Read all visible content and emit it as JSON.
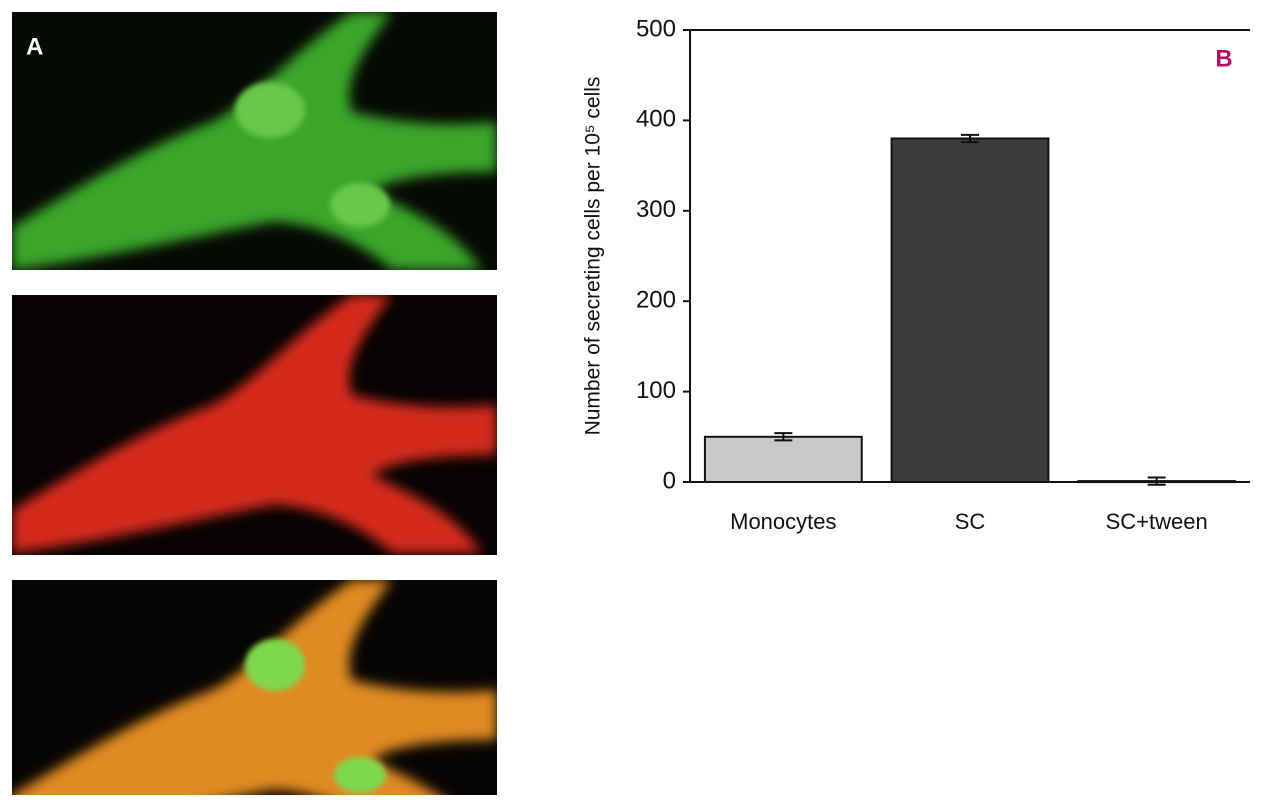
{
  "image_panel": {
    "label": "A"
  },
  "chart_data": {
    "type": "bar",
    "panel_label": "B",
    "y_label": "Number of secreting cells per 10⁵ cells",
    "categories": [
      "Monocytes",
      "SC",
      "SC+tween"
    ],
    "values": [
      50,
      380,
      1
    ],
    "errors": [
      4,
      4,
      4
    ],
    "colors": [
      "#c9c9c9",
      "#3c3c3c",
      "#3c3c3c"
    ],
    "ylim": [
      0,
      500
    ],
    "yticks": [
      0,
      100,
      200,
      300,
      400,
      500
    ],
    "grid": false
  }
}
